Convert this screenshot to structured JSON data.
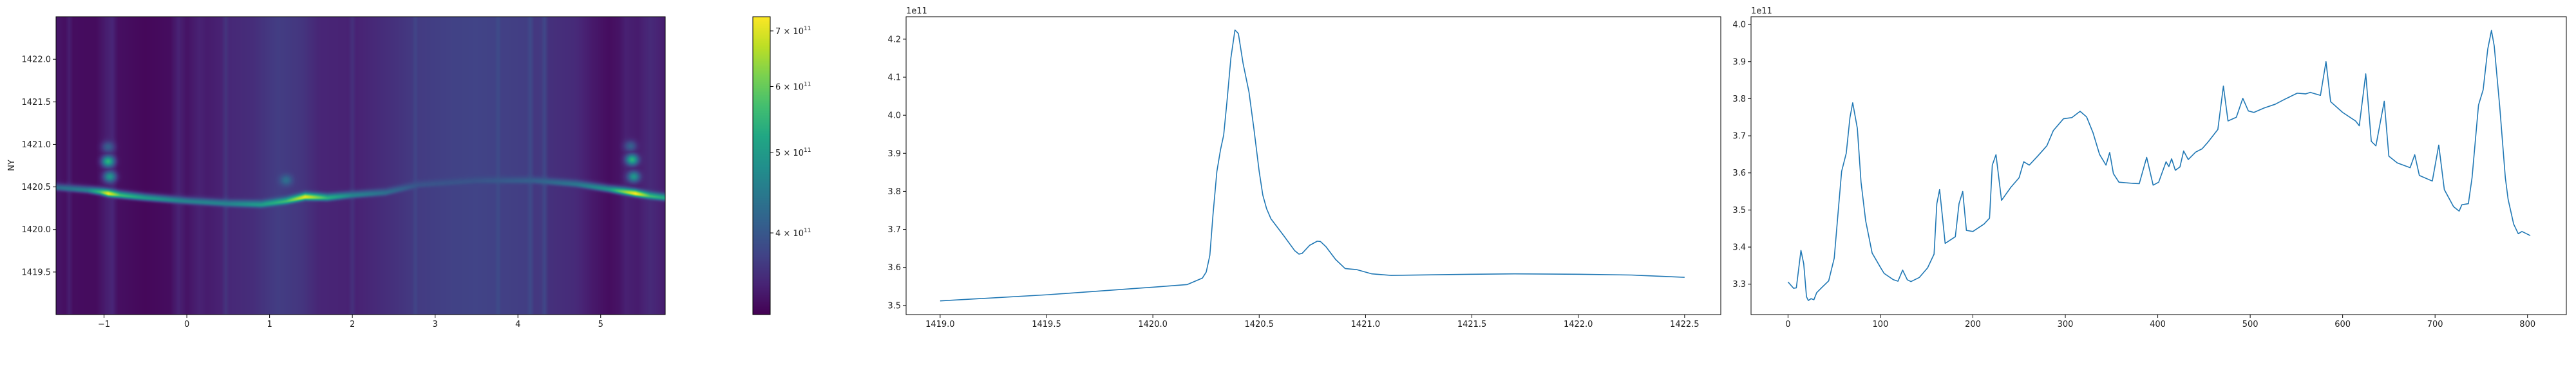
{
  "chart_data": [
    {
      "type": "heatmap",
      "ylabel": "NY",
      "xlabel": "",
      "xlim": [
        -1.58,
        5.78
      ],
      "ylim": [
        1419.0,
        1422.5
      ],
      "x_ticks": [
        "−1",
        "0",
        "1",
        "2",
        "3",
        "4",
        "5"
      ],
      "x_tick_values": [
        -1,
        0,
        1,
        2,
        3,
        4,
        5
      ],
      "y_ticks": [
        "1419.5",
        "1420.0",
        "1420.5",
        "1421.0",
        "1421.5",
        "1422.0"
      ],
      "y_tick_values": [
        1419.5,
        1420.0,
        1420.5,
        1421.0,
        1421.5,
        1422.0
      ],
      "colormap": "viridis",
      "color_scale": "log",
      "color_range": [
        319000000000.0,
        728000000000.0
      ],
      "colorbar_ticks": [
        {
          "value": 700000000000.0,
          "mantissa": "7 × 10",
          "exponent": "11"
        },
        {
          "value": 600000000000.0,
          "mantissa": "6 × 10",
          "exponent": "11"
        },
        {
          "value": 500000000000.0,
          "mantissa": "5 × 10",
          "exponent": "11"
        },
        {
          "value": 400000000000.0,
          "mantissa": "4 × 10",
          "exponent": "11"
        }
      ],
      "background_by_x": [
        [
          -1.58,
          3.36
        ],
        [
          -1.47,
          3.3
        ],
        [
          -1.42,
          3.42
        ],
        [
          -1.37,
          3.28
        ],
        [
          -1.1,
          3.27
        ],
        [
          -0.97,
          3.42
        ],
        [
          -0.9,
          3.48
        ],
        [
          -0.83,
          3.3
        ],
        [
          -0.5,
          3.24
        ],
        [
          -0.2,
          3.28
        ],
        [
          -0.1,
          3.46
        ],
        [
          0.0,
          3.33
        ],
        [
          0.15,
          3.45
        ],
        [
          0.25,
          3.4
        ],
        [
          0.42,
          3.45
        ],
        [
          0.47,
          3.62
        ],
        [
          0.52,
          3.5
        ],
        [
          0.8,
          3.55
        ],
        [
          1.1,
          3.7
        ],
        [
          1.4,
          3.62
        ],
        [
          1.6,
          3.48
        ],
        [
          1.95,
          3.45
        ],
        [
          2.0,
          3.58
        ],
        [
          2.05,
          3.45
        ],
        [
          2.5,
          3.58
        ],
        [
          2.72,
          3.66
        ],
        [
          2.76,
          3.78
        ],
        [
          2.8,
          3.68
        ],
        [
          3.2,
          3.74
        ],
        [
          3.5,
          3.76
        ],
        [
          3.72,
          3.74
        ],
        [
          3.76,
          3.86
        ],
        [
          3.8,
          3.73
        ],
        [
          4.1,
          3.7
        ],
        [
          4.15,
          3.84
        ],
        [
          4.2,
          3.64
        ],
        [
          4.28,
          3.66
        ],
        [
          4.32,
          3.8
        ],
        [
          4.37,
          3.58
        ],
        [
          4.7,
          3.52
        ],
        [
          4.9,
          3.38
        ],
        [
          5.1,
          3.28
        ],
        [
          5.22,
          3.33
        ],
        [
          5.3,
          3.44
        ],
        [
          5.45,
          3.4
        ],
        [
          5.6,
          3.52
        ],
        [
          5.78,
          3.4
        ]
      ],
      "ridge": [
        [
          -1.58,
          1420.49,
          430000000000.0
        ],
        [
          -1.2,
          1420.46,
          460000000000.0
        ],
        [
          -1.05,
          1420.44,
          560000000000.0
        ],
        [
          -0.95,
          1420.42,
          720000000000.0
        ],
        [
          -0.8,
          1420.4,
          560000000000.0
        ],
        [
          -0.5,
          1420.37,
          500000000000.0
        ],
        [
          0.0,
          1420.33,
          460000000000.0
        ],
        [
          0.5,
          1420.3,
          460000000000.0
        ],
        [
          0.9,
          1420.29,
          500000000000.0
        ],
        [
          1.2,
          1420.33,
          560000000000.0
        ],
        [
          1.43,
          1420.38,
          710000000000.0
        ],
        [
          1.7,
          1420.37,
          540000000000.0
        ],
        [
          2.0,
          1420.4,
          460000000000.0
        ],
        [
          2.4,
          1420.43,
          430000000000.0
        ],
        [
          2.8,
          1420.52,
          395000000000.0
        ],
        [
          3.5,
          1420.57,
          395000000000.0
        ],
        [
          4.2,
          1420.57,
          410000000000.0
        ],
        [
          4.7,
          1420.53,
          440000000000.0
        ],
        [
          5.1,
          1420.47,
          490000000000.0
        ],
        [
          5.42,
          1420.42,
          730000000000.0
        ],
        [
          5.6,
          1420.39,
          560000000000.0
        ],
        [
          5.78,
          1420.37,
          520000000000.0
        ]
      ],
      "spots": [
        [
          -0.95,
          1420.8,
          540000000000.0
        ],
        [
          -0.93,
          1420.62,
          490000000000.0
        ],
        [
          -0.95,
          1420.97,
          410000000000.0
        ],
        [
          5.38,
          1420.82,
          540000000000.0
        ],
        [
          5.4,
          1420.62,
          490000000000.0
        ],
        [
          5.36,
          1420.98,
          410000000000.0
        ],
        [
          1.2,
          1420.58,
          430000000000.0
        ]
      ]
    },
    {
      "type": "line",
      "xlabel": "",
      "ylabel": "",
      "y_offset_text": "1e11",
      "xlim": [
        1418.84,
        1422.67
      ],
      "ylim": [
        347600000000.0,
        425900000000.0
      ],
      "x_ticks": [
        "1419.0",
        "1419.5",
        "1420.0",
        "1420.5",
        "1421.0",
        "1421.5",
        "1422.0",
        "1422.5"
      ],
      "x_tick_values": [
        1419.0,
        1419.5,
        1420.0,
        1420.5,
        1421.0,
        1421.5,
        1422.0,
        1422.5
      ],
      "y_ticks": [
        "3.5",
        "3.6",
        "3.7",
        "3.8",
        "3.9",
        "4.0",
        "4.1",
        "4.2"
      ],
      "y_tick_values": [
        350000000000.0,
        360000000000.0,
        370000000000.0,
        380000000000.0,
        390000000000.0,
        400000000000.0,
        410000000000.0,
        420000000000.0
      ],
      "color": "#1f77b4",
      "points": [
        [
          1419.0,
          351200000000.0
        ],
        [
          1419.5,
          352800000000.0
        ],
        [
          1420.0,
          354800000000.0
        ],
        [
          1420.162,
          355500000000.0
        ],
        [
          1420.233,
          357200000000.0
        ],
        [
          1420.251,
          358800000000.0
        ],
        [
          1420.268,
          363200000000.0
        ],
        [
          1420.283,
          374000000000.0
        ],
        [
          1420.301,
          385200000000.0
        ],
        [
          1420.318,
          390900000000.0
        ],
        [
          1420.333,
          394800000000.0
        ],
        [
          1420.348,
          403300000000.0
        ],
        [
          1420.367,
          415100000000.0
        ],
        [
          1420.386,
          422400000000.0
        ],
        [
          1420.402,
          421500000000.0
        ],
        [
          1420.424,
          413700000000.0
        ],
        [
          1420.452,
          406100000000.0
        ],
        [
          1420.475,
          396500000000.0
        ],
        [
          1420.5,
          385200000000.0
        ],
        [
          1420.517,
          379000000000.0
        ],
        [
          1420.535,
          375400000000.0
        ],
        [
          1420.555,
          372800000000.0
        ],
        [
          1420.616,
          368300000000.0
        ],
        [
          1420.667,
          364400000000.0
        ],
        [
          1420.687,
          363500000000.0
        ],
        [
          1420.702,
          363700000000.0
        ],
        [
          1420.737,
          365800000000.0
        ],
        [
          1420.773,
          366900000000.0
        ],
        [
          1420.788,
          366800000000.0
        ],
        [
          1420.813,
          365500000000.0
        ],
        [
          1420.859,
          362100000000.0
        ],
        [
          1420.904,
          359700000000.0
        ],
        [
          1420.96,
          359400000000.0
        ],
        [
          1421.03,
          358300000000.0
        ],
        [
          1421.121,
          357900000000.0
        ],
        [
          1421.5,
          358200000000.0
        ],
        [
          1421.7,
          358300000000.0
        ],
        [
          1422.0,
          358200000000.0
        ],
        [
          1422.25,
          358000000000.0
        ],
        [
          1422.5,
          357400000000.0
        ]
      ]
    },
    {
      "type": "line",
      "xlabel": "",
      "ylabel": "",
      "y_offset_text": "1e11",
      "xlim": [
        -40,
        842
      ],
      "ylim": [
        321800000000.0,
        402100000000.0
      ],
      "x_ticks": [
        "0",
        "100",
        "200",
        "300",
        "400",
        "500",
        "600",
        "700",
        "800"
      ],
      "x_tick_values": [
        0,
        100,
        200,
        300,
        400,
        500,
        600,
        700,
        800
      ],
      "y_ticks": [
        "3.3",
        "3.4",
        "3.5",
        "3.6",
        "3.7",
        "3.8",
        "3.9",
        "4.0"
      ],
      "y_tick_values": [
        330000000000.0,
        340000000000.0,
        350000000000.0,
        360000000000.0,
        370000000000.0,
        380000000000.0,
        390000000000.0,
        400000000000.0
      ],
      "color": "#1f77b4",
      "points": [
        [
          0,
          330600000000.0
        ],
        [
          6,
          328900000000.0
        ],
        [
          9,
          329000000000.0
        ],
        [
          14,
          339100000000.0
        ],
        [
          17,
          335500000000.0
        ],
        [
          20,
          326600000000.0
        ],
        [
          22,
          325600000000.0
        ],
        [
          25,
          326100000000.0
        ],
        [
          28,
          325800000000.0
        ],
        [
          31,
          327700000000.0
        ],
        [
          37,
          329200000000.0
        ],
        [
          44,
          330900000000.0
        ],
        [
          50,
          337000000000.0
        ],
        [
          55,
          351700000000.0
        ],
        [
          58,
          360400000000.0
        ],
        [
          63,
          365300000000.0
        ],
        [
          67,
          374900000000.0
        ],
        [
          70,
          378900000000.0
        ],
        [
          75,
          372000000000.0
        ],
        [
          79,
          357500000000.0
        ],
        [
          84,
          347100000000.0
        ],
        [
          91,
          338400000000.0
        ],
        [
          101,
          334100000000.0
        ],
        [
          104,
          332900000000.0
        ],
        [
          114,
          331200000000.0
        ],
        [
          119,
          330800000000.0
        ],
        [
          124,
          333800000000.0
        ],
        [
          129,
          331200000000.0
        ],
        [
          133,
          330700000000.0
        ],
        [
          142,
          331800000000.0
        ],
        [
          151,
          334400000000.0
        ],
        [
          158,
          338100000000.0
        ],
        [
          161,
          351700000000.0
        ],
        [
          164,
          355500000000.0
        ],
        [
          167,
          348300000000.0
        ],
        [
          170,
          341000000000.0
        ],
        [
          181,
          342800000000.0
        ],
        [
          185,
          351700000000.0
        ],
        [
          189,
          355000000000.0
        ],
        [
          193,
          344500000000.0
        ],
        [
          200,
          344200000000.0
        ],
        [
          212,
          346200000000.0
        ],
        [
          218,
          347800000000.0
        ],
        [
          221,
          362100000000.0
        ],
        [
          225,
          364900000000.0
        ],
        [
          231,
          352600000000.0
        ],
        [
          241,
          356100000000.0
        ],
        [
          250,
          358700000000.0
        ],
        [
          255,
          363000000000.0
        ],
        [
          261,
          362100000000.0
        ],
        [
          270,
          364500000000.0
        ],
        [
          280,
          367300000000.0
        ],
        [
          287,
          371400000000.0
        ],
        [
          298,
          374600000000.0
        ],
        [
          307,
          374900000000.0
        ],
        [
          316,
          376600000000.0
        ],
        [
          323,
          375100000000.0
        ],
        [
          330,
          370800000000.0
        ],
        [
          337,
          365000000000.0
        ],
        [
          344,
          362100000000.0
        ],
        [
          348,
          365500000000.0
        ],
        [
          352,
          359800000000.0
        ],
        [
          358,
          357500000000.0
        ],
        [
          372,
          357200000000.0
        ],
        [
          380,
          357100000000.0
        ],
        [
          388,
          364200000000.0
        ],
        [
          395,
          356700000000.0
        ],
        [
          401,
          357500000000.0
        ],
        [
          409,
          363000000000.0
        ],
        [
          412,
          361700000000.0
        ],
        [
          415,
          363800000000.0
        ],
        [
          419,
          360700000000.0
        ],
        [
          424,
          361600000000.0
        ],
        [
          428,
          365900000000.0
        ],
        [
          433,
          363600000000.0
        ],
        [
          441,
          365600000000.0
        ],
        [
          448,
          366500000000.0
        ],
        [
          454,
          368200000000.0
        ],
        [
          465,
          371700000000.0
        ],
        [
          471,
          383400000000.0
        ],
        [
          476,
          374000000000.0
        ],
        [
          485,
          375000000000.0
        ],
        [
          492,
          380100000000.0
        ],
        [
          498,
          376700000000.0
        ],
        [
          504,
          376300000000.0
        ],
        [
          515,
          377500000000.0
        ],
        [
          527,
          378500000000.0
        ],
        [
          537,
          379800000000.0
        ],
        [
          551,
          381500000000.0
        ],
        [
          560,
          381300000000.0
        ],
        [
          565,
          381700000000.0
        ],
        [
          576,
          380900000000.0
        ],
        [
          582,
          390000000000.0
        ],
        [
          587,
          379200000000.0
        ],
        [
          600,
          376300000000.0
        ],
        [
          614,
          374000000000.0
        ],
        [
          618,
          372700000000.0
        ],
        [
          625,
          386700000000.0
        ],
        [
          631,
          368500000000.0
        ],
        [
          636,
          367300000000.0
        ],
        [
          645,
          379300000000.0
        ],
        [
          650,
          364500000000.0
        ],
        [
          659,
          362700000000.0
        ],
        [
          673,
          361400000000.0
        ],
        [
          678,
          364900000000.0
        ],
        [
          683,
          359300000000.0
        ],
        [
          697,
          357800000000.0
        ],
        [
          704,
          367500000000.0
        ],
        [
          710,
          355500000000.0
        ],
        [
          720,
          350900000000.0
        ],
        [
          726,
          349700000000.0
        ],
        [
          729,
          351400000000.0
        ],
        [
          736,
          351700000000.0
        ],
        [
          740,
          358700000000.0
        ],
        [
          747,
          378300000000.0
        ],
        [
          752,
          382400000000.0
        ],
        [
          757,
          393400000000.0
        ],
        [
          761,
          398400000000.0
        ],
        [
          764,
          394200000000.0
        ],
        [
          770,
          377700000000.0
        ],
        [
          776,
          358700000000.0
        ],
        [
          779,
          352900000000.0
        ],
        [
          785,
          346200000000.0
        ],
        [
          790,
          343600000000.0
        ],
        [
          794,
          344200000000.0
        ],
        [
          803,
          343100000000.0
        ]
      ]
    }
  ]
}
